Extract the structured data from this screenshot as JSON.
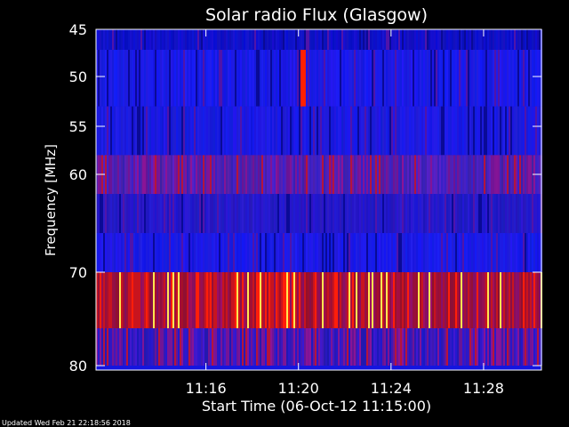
{
  "chart_data": {
    "type": "heatmap",
    "title": "Solar radio Flux (Glasgow)",
    "xlabel": "Start Time (06-Oct-12 11:15:00)",
    "ylabel": "Frequency [MHz]",
    "x_range_minutes": [
      11.25,
      15.5
    ],
    "x_ticks": [
      {
        "label": "11:16",
        "minutes": 16
      },
      {
        "label": "11:20",
        "minutes": 20
      },
      {
        "label": "11:24",
        "minutes": 24
      },
      {
        "label": "11:28",
        "minutes": 28
      }
    ],
    "y_ticks": [
      {
        "label": "45",
        "mhz": 45
      },
      {
        "label": "50",
        "mhz": 50
      },
      {
        "label": "55",
        "mhz": 55
      },
      {
        "label": "60",
        "mhz": 60
      },
      {
        "label": "70",
        "mhz": 70
      },
      {
        "label": "80",
        "mhz": 80
      }
    ],
    "bands": [
      {
        "f_start": 45,
        "f_end": 47,
        "intensity": "low",
        "base_color": "#1010c8"
      },
      {
        "f_start": 47,
        "f_end": 53,
        "intensity": "low",
        "base_color": "#1a1ae8"
      },
      {
        "f_start": 53,
        "f_end": 58,
        "intensity": "low",
        "base_color": "#1a1ae0"
      },
      {
        "f_start": 58,
        "f_end": 62,
        "intensity": "medium",
        "base_color": "#4820b8"
      },
      {
        "f_start": 62,
        "f_end": 66,
        "intensity": "low",
        "base_color": "#2418c8"
      },
      {
        "f_start": 66,
        "f_end": 70,
        "intensity": "low",
        "base_color": "#1a1ae6"
      },
      {
        "f_start": 70,
        "f_end": 76,
        "intensity": "high",
        "base_color": "#a01818"
      },
      {
        "f_start": 76,
        "f_end": 80,
        "intensity": "medium",
        "base_color": "#3018c0"
      }
    ],
    "burst": {
      "time_minutes": 20.2,
      "f_start": 47,
      "f_end": 53,
      "color": "#ff2000"
    },
    "colorscale": [
      "#000080",
      "#0000ff",
      "#800080",
      "#ff0000",
      "#ffff00"
    ]
  },
  "footer": {
    "updated_text": "Updated Wed Feb 21 22:18:56 2018"
  },
  "colors": {
    "background": "#000000",
    "axis": "#ffffff",
    "text": "#ffffff"
  }
}
